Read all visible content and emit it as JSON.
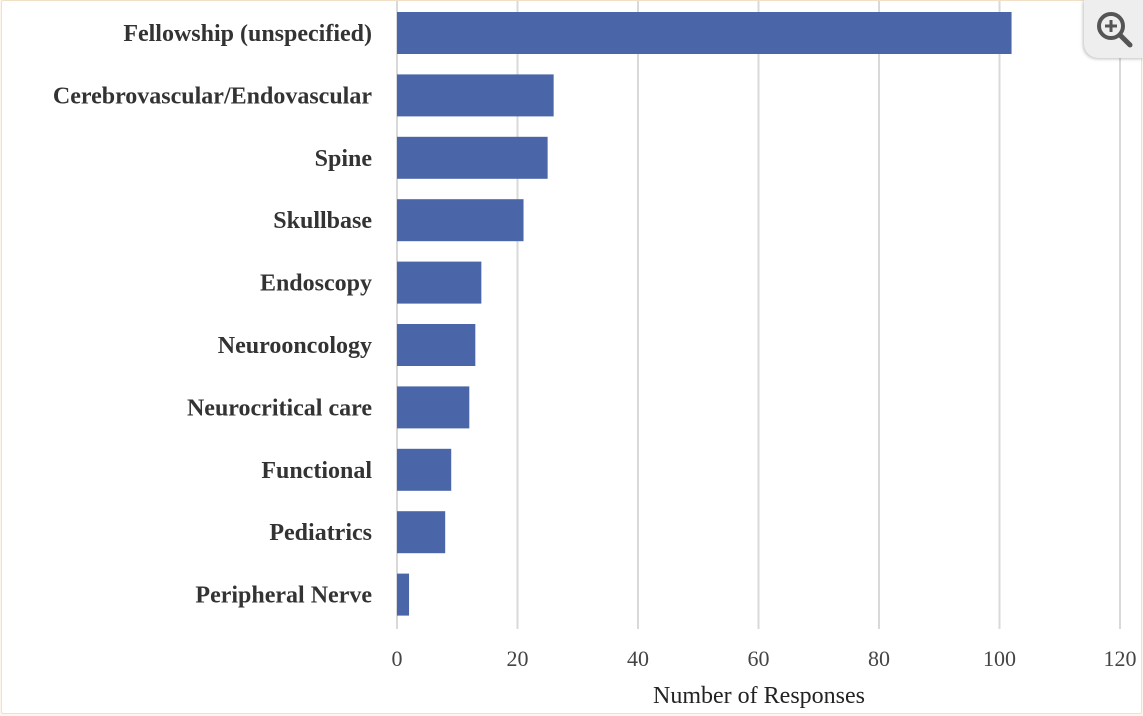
{
  "chart_data": {
    "type": "bar",
    "orientation": "horizontal",
    "categories": [
      "Fellowship (unspecified)",
      "Cerebrovascular/Endovascular",
      "Spine",
      "Skullbase",
      "Endoscopy",
      "Neurooncology",
      "Neurocritical care",
      "Functional",
      "Pediatrics",
      "Peripheral Nerve"
    ],
    "values": [
      102,
      26,
      25,
      21,
      14,
      13,
      12,
      9,
      8,
      2
    ],
    "xlabel": "Number of Responses",
    "ylabel": "",
    "xlim": [
      0,
      120
    ],
    "xticks": [
      "0",
      "20",
      "40",
      "60",
      "80",
      "100",
      "120"
    ],
    "grid": "vertical",
    "bar_color": "#4a65a8",
    "grid_color": "#d9d9d9"
  },
  "zoom_button": {
    "icon": "zoom-in-icon"
  }
}
